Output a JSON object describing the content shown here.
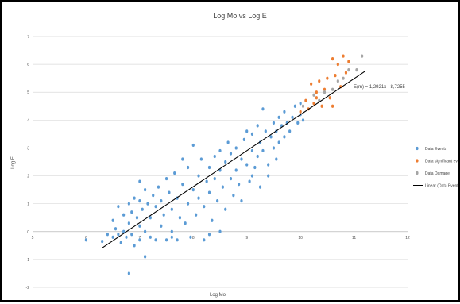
{
  "chart_data": {
    "type": "scatter",
    "title": "Log Mo vs Log E",
    "xlabel": "Log Mo",
    "ylabel": "Log E",
    "xlim": [
      5,
      12
    ],
    "ylim": [
      -2,
      7
    ],
    "x_ticks": [
      "5",
      "6",
      "7",
      "8",
      "9",
      "10",
      "11",
      "12"
    ],
    "y_ticks": [
      "-2",
      "-1",
      "0",
      "1",
      "2",
      "3",
      "4",
      "5",
      "6",
      "7"
    ],
    "grid": "horizontal",
    "legend_position": "right",
    "series": [
      {
        "name": "Data Events",
        "color": "#5b9bd5",
        "points": [
          [
            6.0,
            -0.3
          ],
          [
            6.3,
            -0.35
          ],
          [
            6.5,
            -0.2
          ],
          [
            6.5,
            0.4
          ],
          [
            6.55,
            0.1
          ],
          [
            6.6,
            -0.1
          ],
          [
            6.6,
            0.9
          ],
          [
            6.65,
            -0.4
          ],
          [
            6.7,
            0.0
          ],
          [
            6.7,
            0.6
          ],
          [
            6.75,
            -0.2
          ],
          [
            6.8,
            1.0
          ],
          [
            6.8,
            0.3
          ],
          [
            6.85,
            -0.1
          ],
          [
            6.85,
            0.7
          ],
          [
            6.9,
            1.2
          ],
          [
            6.9,
            -0.5
          ],
          [
            6.95,
            0.5
          ],
          [
            7.0,
            1.1
          ],
          [
            7.0,
            -0.3
          ],
          [
            7.0,
            0.2
          ],
          [
            7.0,
            1.8
          ],
          [
            7.05,
            0.8
          ],
          [
            7.1,
            1.5
          ],
          [
            7.1,
            -0.9
          ],
          [
            7.1,
            0.0
          ],
          [
            7.15,
            1.0
          ],
          [
            7.2,
            -0.2
          ],
          [
            7.2,
            0.5
          ],
          [
            7.25,
            1.3
          ],
          [
            6.8,
            -1.5
          ],
          [
            7.3,
            0.9
          ],
          [
            7.3,
            -0.3
          ],
          [
            7.35,
            1.6
          ],
          [
            7.4,
            0.2
          ],
          [
            7.4,
            1.1
          ],
          [
            7.45,
            0.6
          ],
          [
            7.5,
            1.9
          ],
          [
            7.5,
            -0.3
          ],
          [
            7.55,
            1.4
          ],
          [
            7.6,
            0.8
          ],
          [
            7.6,
            0.0
          ],
          [
            7.65,
            2.1
          ],
          [
            7.7,
            1.2
          ],
          [
            7.7,
            -0.3
          ],
          [
            7.75,
            0.5
          ],
          [
            7.8,
            2.6
          ],
          [
            7.8,
            1.7
          ],
          [
            7.85,
            0.3
          ],
          [
            7.9,
            1.0
          ],
          [
            7.9,
            2.3
          ],
          [
            7.95,
            -0.2
          ],
          [
            8.0,
            3.1
          ],
          [
            8.0,
            1.5
          ],
          [
            8.05,
            0.6
          ],
          [
            8.1,
            2.0
          ],
          [
            8.1,
            1.2
          ],
          [
            8.15,
            2.6
          ],
          [
            8.2,
            0.9
          ],
          [
            8.2,
            -0.3
          ],
          [
            8.25,
            1.8
          ],
          [
            8.3,
            2.3
          ],
          [
            8.3,
            1.4
          ],
          [
            8.35,
            0.4
          ],
          [
            8.4,
            2.7
          ],
          [
            8.4,
            1.9
          ],
          [
            8.45,
            1.1
          ],
          [
            8.5,
            2.9
          ],
          [
            8.5,
            2.2
          ],
          [
            8.5,
            0.0
          ],
          [
            8.55,
            1.6
          ],
          [
            8.6,
            2.5
          ],
          [
            8.6,
            0.8
          ],
          [
            8.65,
            3.2
          ],
          [
            8.7,
            1.9
          ],
          [
            8.7,
            2.8
          ],
          [
            8.75,
            1.3
          ],
          [
            8.8,
            3.0
          ],
          [
            8.8,
            2.2
          ],
          [
            8.85,
            1.7
          ],
          [
            8.9,
            2.6
          ],
          [
            8.9,
            1.1
          ],
          [
            8.95,
            3.3
          ],
          [
            9.0,
            3.6
          ],
          [
            9.0,
            2.4
          ],
          [
            9.05,
            1.8
          ],
          [
            9.1,
            2.9
          ],
          [
            9.1,
            3.5
          ],
          [
            9.15,
            2.3
          ],
          [
            9.2,
            3.8
          ],
          [
            9.2,
            2.7
          ],
          [
            9.25,
            3.2
          ],
          [
            9.3,
            4.4
          ],
          [
            9.3,
            2.9
          ],
          [
            9.35,
            3.6
          ],
          [
            9.4,
            2.4
          ],
          [
            9.45,
            3.4
          ],
          [
            9.5,
            3.9
          ],
          [
            9.5,
            3.0
          ],
          [
            9.55,
            3.6
          ],
          [
            9.6,
            4.1
          ],
          [
            9.6,
            3.2
          ],
          [
            9.65,
            3.8
          ],
          [
            9.7,
            4.3
          ],
          [
            9.7,
            3.4
          ],
          [
            9.75,
            3.9
          ],
          [
            9.8,
            3.6
          ],
          [
            9.85,
            4.1
          ],
          [
            9.9,
            4.5
          ],
          [
            9.95,
            3.9
          ],
          [
            10.0,
            4.2
          ],
          [
            10.0,
            4.6
          ],
          [
            10.05,
            4.0
          ],
          [
            9.25,
            1.6
          ],
          [
            9.1,
            2.0
          ],
          [
            8.3,
            -0.1
          ],
          [
            7.6,
            -0.2
          ],
          [
            6.4,
            -0.1
          ],
          [
            9.4,
            2.0
          ],
          [
            9.55,
            2.6
          ]
        ]
      },
      {
        "name": "Data significant event",
        "color": "#ed7d31",
        "points": [
          [
            10.0,
            4.3
          ],
          [
            10.1,
            4.7
          ],
          [
            10.15,
            4.4
          ],
          [
            10.2,
            5.3
          ],
          [
            10.25,
            4.6
          ],
          [
            10.3,
            5.0
          ],
          [
            10.35,
            5.4
          ],
          [
            10.4,
            4.5
          ],
          [
            10.45,
            5.1
          ],
          [
            10.5,
            5.5
          ],
          [
            10.55,
            4.8
          ],
          [
            10.6,
            6.2
          ],
          [
            10.65,
            5.6
          ],
          [
            10.7,
            6.0
          ],
          [
            10.75,
            5.2
          ],
          [
            10.8,
            6.3
          ],
          [
            10.85,
            5.7
          ],
          [
            10.9,
            6.1
          ],
          [
            10.6,
            4.5
          ],
          [
            10.3,
            4.8
          ]
        ]
      },
      {
        "name": "Data Damage",
        "color": "#a5a5a5",
        "points": [
          [
            10.05,
            4.5
          ],
          [
            10.25,
            4.9
          ],
          [
            10.45,
            5.0
          ],
          [
            10.7,
            5.4
          ],
          [
            10.8,
            5.5
          ],
          [
            10.9,
            5.8
          ],
          [
            11.05,
            5.8
          ],
          [
            11.15,
            6.3
          ],
          [
            10.35,
            4.7
          ],
          [
            10.6,
            5.1
          ]
        ]
      }
    ],
    "trendline": {
      "name": "Linear (Data Events)",
      "color": "#000000",
      "equation": "E(m) = 1,2921x - 8,7255",
      "slope": 1.2921,
      "intercept": -8.7255,
      "x_range": [
        6.3,
        11.2
      ]
    }
  }
}
